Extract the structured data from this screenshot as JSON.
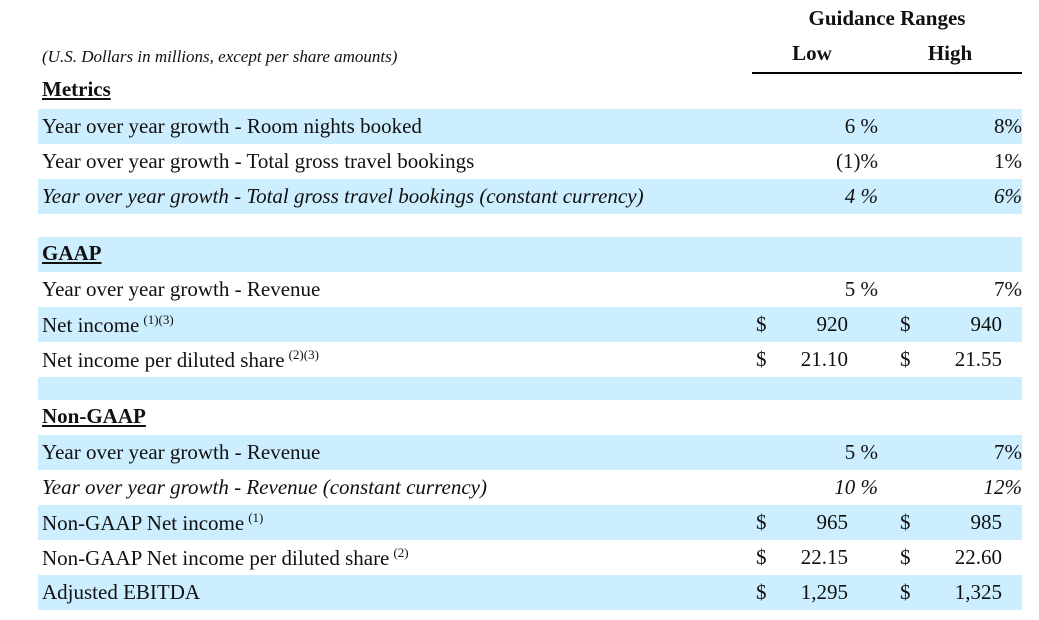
{
  "header": {
    "guidance_title": "Guidance Ranges",
    "low_label": "Low",
    "high_label": "High",
    "units_note": "(U.S. Dollars in millions, except per share amounts)"
  },
  "colors": {
    "band_blue": "#cceefe",
    "text": "#111111"
  },
  "metrics": {
    "title": "Metrics",
    "rows": [
      {
        "label": "Year over year growth - Room nights booked",
        "low": "6 %",
        "high": "8%"
      },
      {
        "label": "Year over year growth - Total gross travel bookings",
        "low": "(1)%",
        "high": "1%"
      },
      {
        "label": "Year over year growth - Total gross travel bookings (constant currency)",
        "low": "4 %",
        "high": "6%"
      }
    ]
  },
  "gaap": {
    "title": "GAAP",
    "rows": [
      {
        "label": "Year over year growth - Revenue",
        "low": "5 %",
        "high": "7%"
      },
      {
        "label": "Net income",
        "sup": "(1)(3)",
        "currency": "$",
        "low": "920",
        "high": "940"
      },
      {
        "label": "Net income per diluted share",
        "sup": "(2)(3)",
        "currency": "$",
        "low": "21.10",
        "high": "21.55"
      }
    ]
  },
  "non_gaap": {
    "title": "Non-GAAP",
    "rows": [
      {
        "label": "Year over year growth - Revenue",
        "low": "5 %",
        "high": "7%"
      },
      {
        "label": "Year over year growth - Revenue (constant currency)",
        "low": "10 %",
        "high": "12%"
      },
      {
        "label": "Non-GAAP Net income",
        "sup": "(1)",
        "currency": "$",
        "low": "965",
        "high": "985"
      },
      {
        "label": "Non-GAAP Net income per diluted share",
        "sup": "(2)",
        "currency": "$",
        "low": "22.15",
        "high": "22.60"
      },
      {
        "label": "Adjusted EBITDA",
        "currency": "$",
        "low": "1,295",
        "high": "1,325"
      }
    ]
  }
}
